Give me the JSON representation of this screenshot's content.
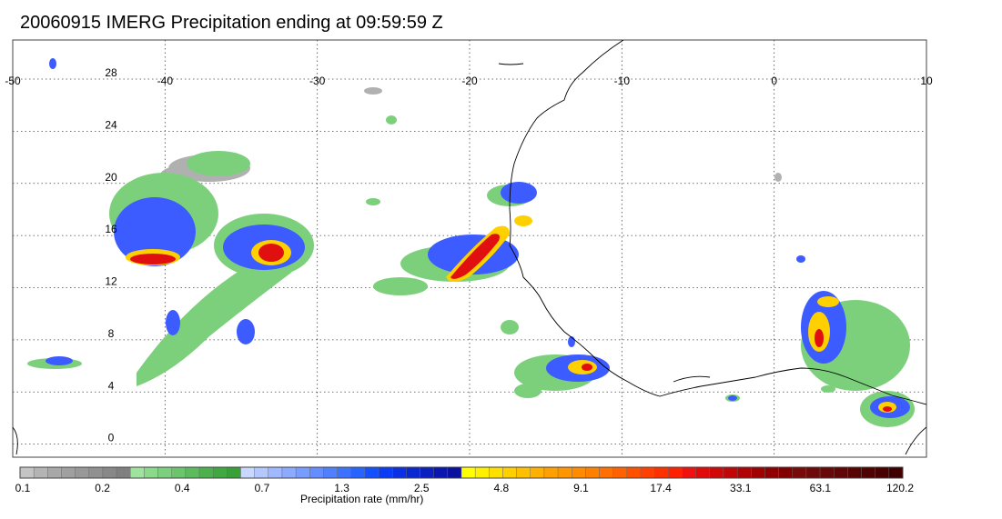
{
  "title": "20060915 IMERG Precipitation ending at 09:59:59 Z",
  "map": {
    "lon_range": [
      -50,
      10
    ],
    "lat_range": [
      -1,
      31
    ],
    "lon_ticks": [
      -50,
      -40,
      -30,
      -20,
      -10,
      0,
      10
    ],
    "lat_ticks": [
      0,
      4,
      8,
      12,
      16,
      20,
      24,
      28
    ],
    "grid": "dotted"
  },
  "colorbar": {
    "title": "Precipitation rate (mm/hr)",
    "tick_labels": [
      "0.1",
      "0.2",
      "0.4",
      "0.7",
      "1.3",
      "2.5",
      "4.8",
      "9.1",
      "17.4",
      "33.1",
      "63.1",
      "120.2"
    ],
    "colors": [
      "#c4c4c4",
      "#b4b4b4",
      "#a8a8a8",
      "#a0a0a0",
      "#989898",
      "#909090",
      "#888888",
      "#808080",
      "#9ee39e",
      "#8cd98c",
      "#7ccf7c",
      "#6cc56c",
      "#5cbb5c",
      "#4cb14c",
      "#40a840",
      "#38a038",
      "#c8d8ff",
      "#b4c8ff",
      "#a0b8ff",
      "#8caaff",
      "#789cff",
      "#648eff",
      "#5080ff",
      "#3c72ff",
      "#2864ff",
      "#1450ff",
      "#0a3cf5",
      "#0a30e6",
      "#0a28d2",
      "#0a20c0",
      "#0a18b0",
      "#0a10a0",
      "#ffff00",
      "#fff000",
      "#ffe000",
      "#ffd000",
      "#ffc000",
      "#ffb000",
      "#ffa000",
      "#ff9600",
      "#ff8c00",
      "#ff8000",
      "#ff7000",
      "#ff6000",
      "#ff5000",
      "#ff4000",
      "#ff3000",
      "#ff2000",
      "#f01010",
      "#e00a0a",
      "#d00808",
      "#c00606",
      "#b00404",
      "#a00202",
      "#900000",
      "#840000",
      "#780a0a",
      "#700a0a",
      "#680808",
      "#600606",
      "#580404",
      "#500202",
      "#480000",
      "#400000"
    ]
  },
  "precip_colors": {
    "gray": "#a0a0a0",
    "green": "#72c872",
    "light_blue": "#8ab4ff",
    "blue": "#2a48ff",
    "dark_blue": "#0a14b4",
    "yellow": "#ffe400",
    "orange": "#ff8c00",
    "red": "#e01010",
    "dark_red": "#8a0000"
  }
}
